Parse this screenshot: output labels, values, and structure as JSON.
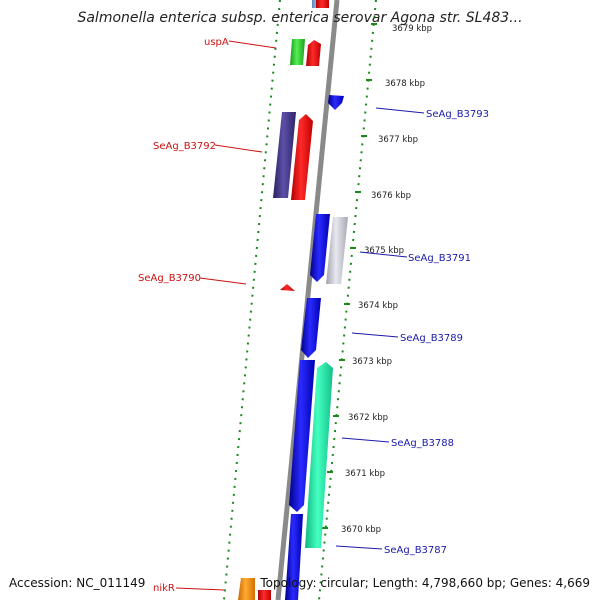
{
  "title": "Salmonella enterica subsp. enterica serovar Agona str. SL483...",
  "accession": "Accession: NC_011149",
  "topology": "Topology: circular; Length: 4,798,660 bp; Genes: 4,669",
  "ticks": [
    {
      "label": "3679 kbp"
    },
    {
      "label": "3678 kbp"
    },
    {
      "label": "3677 kbp"
    },
    {
      "label": "3676 kbp"
    },
    {
      "label": "3675 kbp"
    },
    {
      "label": "3674 kbp"
    },
    {
      "label": "3673 kbp"
    },
    {
      "label": "3672 kbp"
    },
    {
      "label": "3671 kbp"
    },
    {
      "label": "3670 kbp"
    }
  ],
  "gene_labels": {
    "uspA": "uspA",
    "SeAg_B3793": "SeAg_B3793",
    "SeAg_B3792": "SeAg_B3792",
    "SeAg_B3791": "SeAg_B3791",
    "SeAg_B3790": "SeAg_B3790",
    "SeAg_B3789": "SeAg_B3789",
    "SeAg_B3788": "SeAg_B3788",
    "SeAg_B3787": "SeAg_B3787",
    "nikR": "nikR"
  },
  "colors": {
    "red": "#ff1010",
    "blue": "#0a0ae8",
    "purple": "#4b3f8c",
    "green": "#33cc33",
    "teal": "#22e8a8",
    "gray": "#c8c8d0",
    "orange": "#ff8c00",
    "backbone": "#8a8a8a",
    "dots": "#1a8a1a"
  }
}
